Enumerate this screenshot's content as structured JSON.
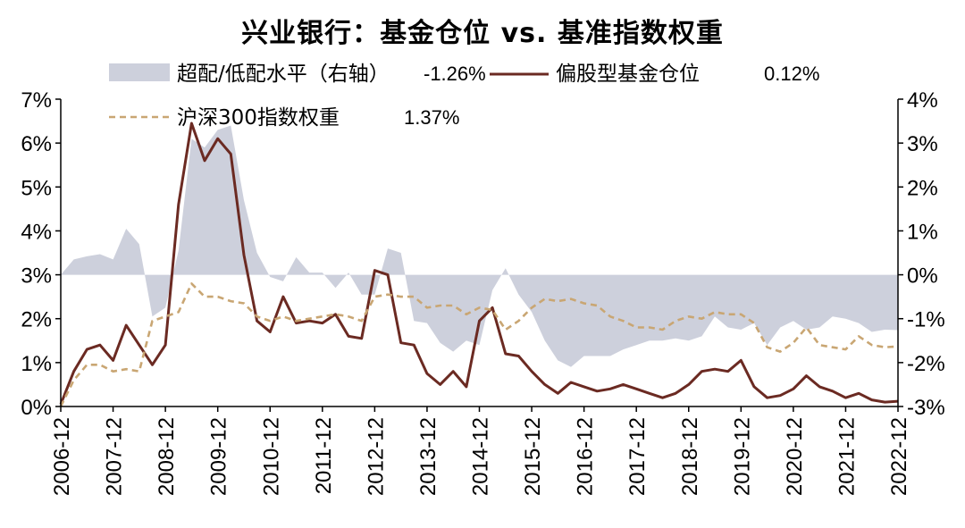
{
  "chart_data": {
    "type": "line",
    "title": "兴业银行：基金仓位 vs. 基准指数权重",
    "x_categories": [
      "2006-12",
      "2007-12",
      "2008-12",
      "2009-12",
      "2010-12",
      "2011-12",
      "2012-12",
      "2013-12",
      "2014-12",
      "2015-12",
      "2016-12",
      "2017-12",
      "2018-12",
      "2019-12",
      "2020-12",
      "2021-12",
      "2022-12"
    ],
    "x_values": [
      2006.75,
      2007.0,
      2007.25,
      2007.5,
      2007.75,
      2008.0,
      2008.25,
      2008.5,
      2008.75,
      2009.0,
      2009.25,
      2009.5,
      2009.75,
      2010.0,
      2010.25,
      2010.5,
      2010.75,
      2011.0,
      2011.25,
      2011.5,
      2011.75,
      2012.0,
      2012.25,
      2012.5,
      2012.75,
      2013.0,
      2013.25,
      2013.5,
      2013.75,
      2014.0,
      2014.25,
      2014.5,
      2014.75,
      2015.0,
      2015.25,
      2015.5,
      2015.75,
      2016.0,
      2016.25,
      2016.5,
      2016.75,
      2017.0,
      2017.25,
      2017.5,
      2017.75,
      2018.0,
      2018.25,
      2018.5,
      2018.75,
      2019.0,
      2019.25,
      2019.5,
      2019.75,
      2020.0,
      2020.25,
      2020.5,
      2020.75,
      2021.0,
      2021.25,
      2021.5,
      2021.75,
      2022.0,
      2022.25,
      2022.5,
      2022.75
    ],
    "y_left": {
      "min": 0,
      "max": 7,
      "step": 1,
      "unit": "%"
    },
    "y_right": {
      "min": -3,
      "max": 4,
      "step": 1,
      "unit": "%"
    },
    "legend": [
      {
        "label": "超配/低配水平（右轴）",
        "value": "-1.26%",
        "style": "area",
        "color": "#cdd0dc"
      },
      {
        "label": "偏股型基金仓位",
        "value": "0.12%",
        "style": "solid",
        "color": "#6b2a22"
      },
      {
        "label": "沪深300指数权重",
        "value": "1.37%",
        "style": "dashed",
        "color": "#c9a673"
      }
    ],
    "series": [
      {
        "name": "超配/低配水平（右轴）",
        "axis": "right",
        "type": "area",
        "color": "#cdd0dc",
        "values": [
          0.0,
          0.35,
          0.42,
          0.47,
          0.35,
          1.05,
          0.7,
          -0.95,
          -0.75,
          0.55,
          3.1,
          2.9,
          3.3,
          3.4,
          1.7,
          0.5,
          -0.05,
          -0.15,
          0.4,
          0.05,
          0.05,
          -0.3,
          0.05,
          -0.45,
          -0.45,
          0.6,
          0.5,
          -1.05,
          -1.1,
          -1.55,
          -1.75,
          -1.5,
          -1.6,
          -0.35,
          0.15,
          -0.45,
          -0.85,
          -1.5,
          -1.95,
          -2.1,
          -1.85,
          -1.85,
          -1.85,
          -1.7,
          -1.6,
          -1.5,
          -1.5,
          -1.45,
          -1.5,
          -1.4,
          -0.95,
          -1.2,
          -1.25,
          -1.1,
          -1.6,
          -1.2,
          -1.05,
          -1.25,
          -1.2,
          -0.95,
          -1.0,
          -1.1,
          -1.3,
          -1.25,
          -1.26
        ]
      },
      {
        "name": "偏股型基金仓位",
        "axis": "left",
        "type": "line",
        "color": "#6b2a22",
        "values": [
          0.05,
          0.8,
          1.3,
          1.4,
          1.05,
          1.85,
          1.4,
          0.95,
          1.4,
          4.6,
          6.45,
          5.6,
          6.1,
          5.75,
          3.45,
          1.95,
          1.7,
          2.5,
          1.9,
          1.95,
          1.9,
          2.1,
          1.6,
          1.55,
          3.1,
          3.0,
          1.45,
          1.4,
          0.75,
          0.5,
          0.8,
          0.45,
          1.95,
          2.25,
          1.2,
          1.15,
          0.8,
          0.5,
          0.3,
          0.55,
          0.45,
          0.35,
          0.4,
          0.5,
          0.4,
          0.3,
          0.2,
          0.3,
          0.5,
          0.8,
          0.85,
          0.8,
          1.05,
          0.45,
          0.2,
          0.25,
          0.4,
          0.7,
          0.45,
          0.35,
          0.2,
          0.3,
          0.15,
          0.1,
          0.12
        ]
      },
      {
        "name": "沪深300指数权重",
        "axis": "left",
        "type": "line",
        "dashed": true,
        "color": "#c9a673",
        "values": [
          0.0,
          0.6,
          0.95,
          0.95,
          0.8,
          0.85,
          0.8,
          1.95,
          2.05,
          2.15,
          2.8,
          2.5,
          2.5,
          2.4,
          2.35,
          2.05,
          1.95,
          2.05,
          1.95,
          2.0,
          2.05,
          2.1,
          2.05,
          1.95,
          2.5,
          2.55,
          2.5,
          2.5,
          2.25,
          2.3,
          2.3,
          2.1,
          2.25,
          2.2,
          1.75,
          1.95,
          2.25,
          2.45,
          2.4,
          2.45,
          2.35,
          2.3,
          2.05,
          1.95,
          1.8,
          1.8,
          1.75,
          1.95,
          2.05,
          2.0,
          2.15,
          2.1,
          2.1,
          1.9,
          1.35,
          1.25,
          1.45,
          1.8,
          1.4,
          1.35,
          1.3,
          1.6,
          1.4,
          1.35,
          1.37
        ]
      }
    ]
  }
}
